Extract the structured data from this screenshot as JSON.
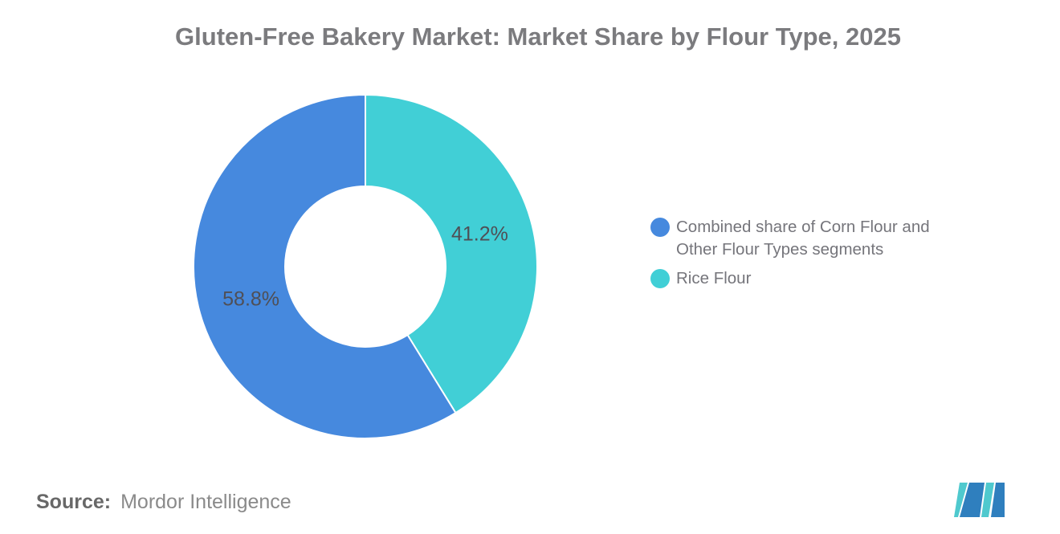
{
  "title": "Gluten-Free Bakery Market: Market Share by Flour Type, 2025",
  "chart_data": {
    "type": "pie",
    "subtype": "donut",
    "title": "Gluten-Free Bakery Market: Market Share by Flour Type, 2025",
    "units": "%",
    "direction": "clockwise",
    "start_angle_deg_from_top": 0,
    "inner_radius_ratio": 0.465,
    "legend_position": "right",
    "grid": false,
    "slices": [
      {
        "label": "Combined share of Corn Flour and Other Flour Types segments",
        "value": 58.8,
        "display": "58.8%",
        "color": "#4689DE"
      },
      {
        "label": "Rice Flour",
        "value": 41.2,
        "display": "41.2%",
        "color": "#41CFD6"
      }
    ]
  },
  "legend": {
    "items": [
      {
        "label": "Combined share of Corn Flour and Other Flour Types segments",
        "color": "#4689DE"
      },
      {
        "label": "Rice Flour",
        "color": "#41CFD6"
      }
    ]
  },
  "footer": {
    "source_label": "Source:",
    "source_value": "Mordor Intelligence"
  },
  "logo": {
    "name": "mordor-intelligence-logo",
    "blue": "#2F7FBE",
    "teal": "#4FC9CE"
  }
}
